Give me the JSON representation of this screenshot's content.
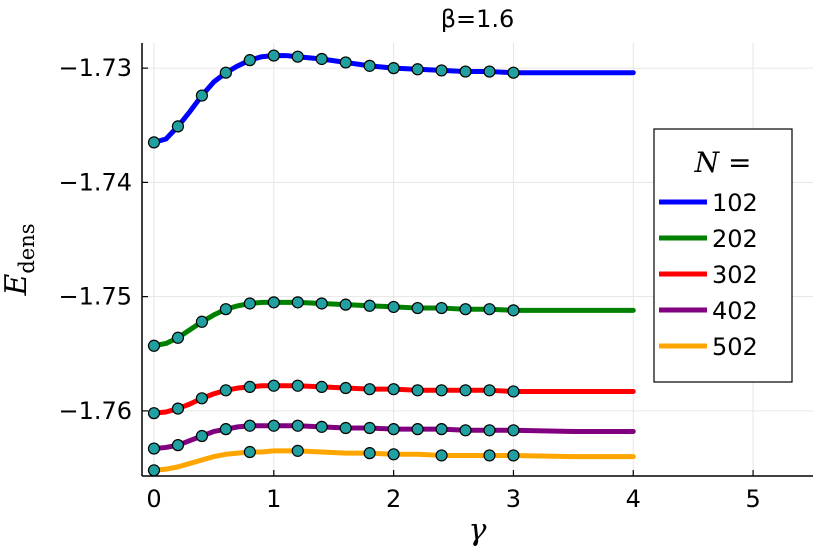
{
  "chart_data": {
    "type": "line",
    "title": "β=1.6",
    "xlabel": "γ",
    "ylabel": "E_dens",
    "ylabel_main": "E",
    "ylabel_sub": "dens",
    "xlim": [
      -0.1,
      5.5
    ],
    "ylim": [
      -1.7657,
      -1.7278
    ],
    "xticks": [
      0,
      1,
      2,
      3,
      4,
      5
    ],
    "xtick_labels": [
      "0",
      "1",
      "2",
      "3",
      "4",
      "5"
    ],
    "yticks": [
      -1.73,
      -1.74,
      -1.75,
      -1.76
    ],
    "ytick_labels": [
      "−1.73",
      "−1.74",
      "−1.75",
      "−1.76"
    ],
    "grid": true,
    "legend_title": "N =",
    "legend_position": "right",
    "series": [
      {
        "name": "102",
        "color": "#0000ff",
        "line_x": [
          0,
          0.1,
          0.2,
          0.3,
          0.4,
          0.5,
          0.6,
          0.7,
          0.8,
          0.9,
          1.0,
          1.1,
          1.2,
          1.4,
          1.6,
          1.8,
          2.0,
          2.2,
          2.4,
          2.6,
          2.8,
          3.0,
          3.5,
          4.0
        ],
        "line_y": [
          -1.7365,
          -1.7362,
          -1.7351,
          -1.7338,
          -1.7324,
          -1.7312,
          -1.7304,
          -1.7298,
          -1.7293,
          -1.729,
          -1.7289,
          -1.7289,
          -1.729,
          -1.7292,
          -1.7295,
          -1.7298,
          -1.73,
          -1.7301,
          -1.7302,
          -1.7303,
          -1.7303,
          -1.7304,
          -1.7304,
          -1.7304
        ],
        "points_x": [
          0,
          0.2,
          0.4,
          0.6,
          0.8,
          1.0,
          1.2,
          1.4,
          1.6,
          1.8,
          2.0,
          2.2,
          2.4,
          2.6,
          2.8,
          3.0
        ],
        "points_y": [
          -1.7365,
          -1.7351,
          -1.7324,
          -1.7304,
          -1.7293,
          -1.7289,
          -1.729,
          -1.7292,
          -1.7295,
          -1.7298,
          -1.73,
          -1.7301,
          -1.7302,
          -1.7303,
          -1.7303,
          -1.7304
        ]
      },
      {
        "name": "202",
        "color": "#008000",
        "line_x": [
          0,
          0.1,
          0.2,
          0.3,
          0.4,
          0.5,
          0.6,
          0.7,
          0.8,
          0.9,
          1.0,
          1.1,
          1.2,
          1.4,
          1.6,
          1.8,
          2.0,
          2.2,
          2.4,
          2.6,
          2.8,
          3.0,
          3.5,
          4.0
        ],
        "line_y": [
          -1.7543,
          -1.7541,
          -1.7536,
          -1.7529,
          -1.7522,
          -1.7516,
          -1.7511,
          -1.7508,
          -1.7506,
          -1.7505,
          -1.7505,
          -1.7505,
          -1.7505,
          -1.7506,
          -1.7507,
          -1.7508,
          -1.7509,
          -1.751,
          -1.751,
          -1.7511,
          -1.7511,
          -1.7512,
          -1.7512,
          -1.7512
        ],
        "points_x": [
          0,
          0.2,
          0.4,
          0.6,
          0.8,
          1.0,
          1.2,
          1.4,
          1.6,
          1.8,
          2.0,
          2.2,
          2.4,
          2.6,
          2.8,
          3.0
        ],
        "points_y": [
          -1.7543,
          -1.7536,
          -1.7522,
          -1.7511,
          -1.7506,
          -1.7505,
          -1.7505,
          -1.7506,
          -1.7507,
          -1.7508,
          -1.7509,
          -1.751,
          -1.751,
          -1.7511,
          -1.7511,
          -1.7512
        ]
      },
      {
        "name": "302",
        "color": "#ff0000",
        "line_x": [
          0,
          0.1,
          0.2,
          0.3,
          0.4,
          0.5,
          0.6,
          0.7,
          0.8,
          0.9,
          1.0,
          1.1,
          1.2,
          1.4,
          1.6,
          1.8,
          2.0,
          2.2,
          2.4,
          2.6,
          2.8,
          3.0,
          3.5,
          4.0
        ],
        "line_y": [
          -1.7602,
          -1.7601,
          -1.7598,
          -1.7594,
          -1.7589,
          -1.7585,
          -1.7582,
          -1.758,
          -1.7579,
          -1.7578,
          -1.7578,
          -1.7578,
          -1.7578,
          -1.7579,
          -1.758,
          -1.7581,
          -1.7581,
          -1.7582,
          -1.7582,
          -1.7582,
          -1.7582,
          -1.7583,
          -1.7583,
          -1.7583
        ],
        "points_x": [
          0,
          0.2,
          0.4,
          0.6,
          0.8,
          1.0,
          1.2,
          1.4,
          1.6,
          1.8,
          2.0,
          2.2,
          2.4,
          2.6,
          2.8,
          3.0
        ],
        "points_y": [
          -1.7602,
          -1.7598,
          -1.7589,
          -1.7582,
          -1.7579,
          -1.7578,
          -1.7578,
          -1.7579,
          -1.758,
          -1.7581,
          -1.7581,
          -1.7582,
          -1.7582,
          -1.7582,
          -1.7582,
          -1.7583
        ]
      },
      {
        "name": "402",
        "color": "#800080",
        "line_x": [
          0,
          0.1,
          0.2,
          0.3,
          0.4,
          0.5,
          0.6,
          0.7,
          0.8,
          0.9,
          1.0,
          1.1,
          1.2,
          1.4,
          1.6,
          1.8,
          2.0,
          2.2,
          2.4,
          2.6,
          2.8,
          3.0,
          3.5,
          4.0
        ],
        "line_y": [
          -1.7633,
          -1.7632,
          -1.763,
          -1.7626,
          -1.7622,
          -1.7618,
          -1.7616,
          -1.7614,
          -1.7613,
          -1.7613,
          -1.7613,
          -1.7613,
          -1.7613,
          -1.7614,
          -1.7615,
          -1.7615,
          -1.7616,
          -1.7616,
          -1.7616,
          -1.7617,
          -1.7617,
          -1.7617,
          -1.7618,
          -1.7618
        ],
        "points_x": [
          0,
          0.2,
          0.4,
          0.6,
          0.8,
          1.0,
          1.2,
          1.4,
          1.6,
          1.8,
          2.0,
          2.2,
          2.4,
          2.6,
          2.8,
          3.0
        ],
        "points_y": [
          -1.7633,
          -1.763,
          -1.7622,
          -1.7616,
          -1.7613,
          -1.7613,
          -1.7613,
          -1.7614,
          -1.7615,
          -1.7615,
          -1.7616,
          -1.7616,
          -1.7616,
          -1.7617,
          -1.7617,
          -1.7617
        ]
      },
      {
        "name": "502",
        "color": "#ffa500",
        "line_x": [
          0,
          0.1,
          0.2,
          0.3,
          0.4,
          0.5,
          0.6,
          0.7,
          0.8,
          0.9,
          1.0,
          1.2,
          1.4,
          1.6,
          1.8,
          2.0,
          2.2,
          2.4,
          2.6,
          2.8,
          3.0,
          3.5,
          4.0
        ],
        "line_y": [
          -1.7652,
          -1.7651,
          -1.7649,
          -1.7646,
          -1.7643,
          -1.764,
          -1.7638,
          -1.7637,
          -1.7636,
          -1.7636,
          -1.7635,
          -1.7635,
          -1.7636,
          -1.7637,
          -1.7637,
          -1.7638,
          -1.7638,
          -1.7639,
          -1.7639,
          -1.7639,
          -1.7639,
          -1.764,
          -1.764
        ],
        "points_x": [
          0,
          0.8,
          1.2,
          1.8,
          2.0,
          2.4,
          2.8,
          3.0
        ],
        "points_y": [
          -1.7652,
          -1.7636,
          -1.7635,
          -1.7637,
          -1.7638,
          -1.7639,
          -1.7639,
          -1.7639
        ]
      }
    ],
    "marker_color": "#20a0a0"
  }
}
